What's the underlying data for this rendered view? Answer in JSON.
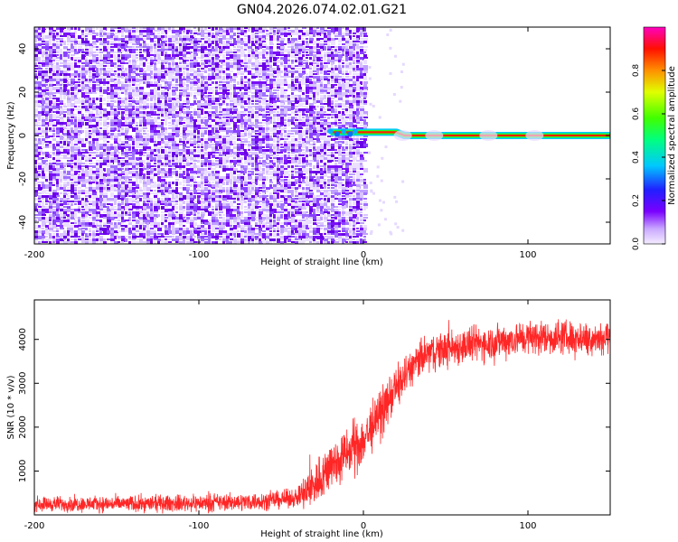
{
  "title": "GN04.2026.074.02.01.G21",
  "colors": {
    "series_red": "#ff0000",
    "background": "#ffffff",
    "cmap": [
      "#ffffff",
      "#7a00ff",
      "#0000ff",
      "#00e0ff",
      "#00ff00",
      "#ffe600",
      "#ff0000",
      "#ff00aa"
    ]
  },
  "chart_data": [
    {
      "type": "heatmap",
      "xlabel": "Height of straight line (km)",
      "ylabel": "Frequency (Hz)",
      "xlim": [
        -200,
        150
      ],
      "ylim": [
        -50,
        50
      ],
      "xticks": [
        -200,
        -100,
        0,
        100
      ],
      "xtick_labels": [
        "-200",
        "-100",
        "0",
        "100"
      ],
      "yticks": [
        -40,
        -20,
        0,
        20,
        40
      ],
      "ytick_labels": [
        "-40",
        "-20",
        "0",
        "20",
        "40"
      ],
      "noise_region_x": [
        -200,
        2
      ],
      "signal_track": {
        "x_start": -20,
        "x_end": 150,
        "frequency_hz": [
          {
            "x": -20,
            "f": 1.5
          },
          {
            "x": 20,
            "f": 1.5
          },
          {
            "x": 25,
            "f": 0
          },
          {
            "x": 150,
            "f": 0
          }
        ]
      },
      "colorbar": {
        "label": "Normalized spectral amplitude",
        "range": [
          0,
          1
        ],
        "ticks": [
          0.0,
          0.2,
          0.4,
          0.6,
          0.8
        ],
        "tick_labels": [
          "0.0",
          "0.2",
          "0.4",
          "0.6",
          "0.8"
        ]
      }
    },
    {
      "type": "line",
      "xlabel": "Height of straight line (km)",
      "ylabel": "SNR (10 * v/v)",
      "xlim": [
        -200,
        150
      ],
      "ylim": [
        0,
        4900
      ],
      "xticks": [
        -200,
        -100,
        0,
        100
      ],
      "xtick_labels": [
        "-200",
        "-100",
        "0",
        "100"
      ],
      "yticks": [
        1000,
        2000,
        3000,
        4000
      ],
      "ytick_labels": [
        "1000",
        "2000",
        "3000",
        "4000"
      ],
      "trend": [
        {
          "x": -200,
          "y": 250
        },
        {
          "x": -150,
          "y": 250
        },
        {
          "x": -100,
          "y": 270
        },
        {
          "x": -70,
          "y": 300
        },
        {
          "x": -50,
          "y": 350
        },
        {
          "x": -40,
          "y": 400
        },
        {
          "x": -35,
          "y": 500
        },
        {
          "x": -30,
          "y": 700
        },
        {
          "x": -20,
          "y": 1100
        },
        {
          "x": -10,
          "y": 1400
        },
        {
          "x": 0,
          "y": 1700
        },
        {
          "x": 10,
          "y": 2300
        },
        {
          "x": 20,
          "y": 2900
        },
        {
          "x": 30,
          "y": 3400
        },
        {
          "x": 40,
          "y": 3700
        },
        {
          "x": 60,
          "y": 3850
        },
        {
          "x": 80,
          "y": 3950
        },
        {
          "x": 100,
          "y": 4050
        },
        {
          "x": 150,
          "y": 4050
        }
      ],
      "noise_amplitude": [
        {
          "x": -200,
          "a": 150
        },
        {
          "x": -40,
          "a": 180
        },
        {
          "x": -35,
          "a": 450
        },
        {
          "x": 0,
          "a": 550
        },
        {
          "x": 30,
          "a": 380
        },
        {
          "x": 150,
          "a": 330
        }
      ]
    }
  ]
}
